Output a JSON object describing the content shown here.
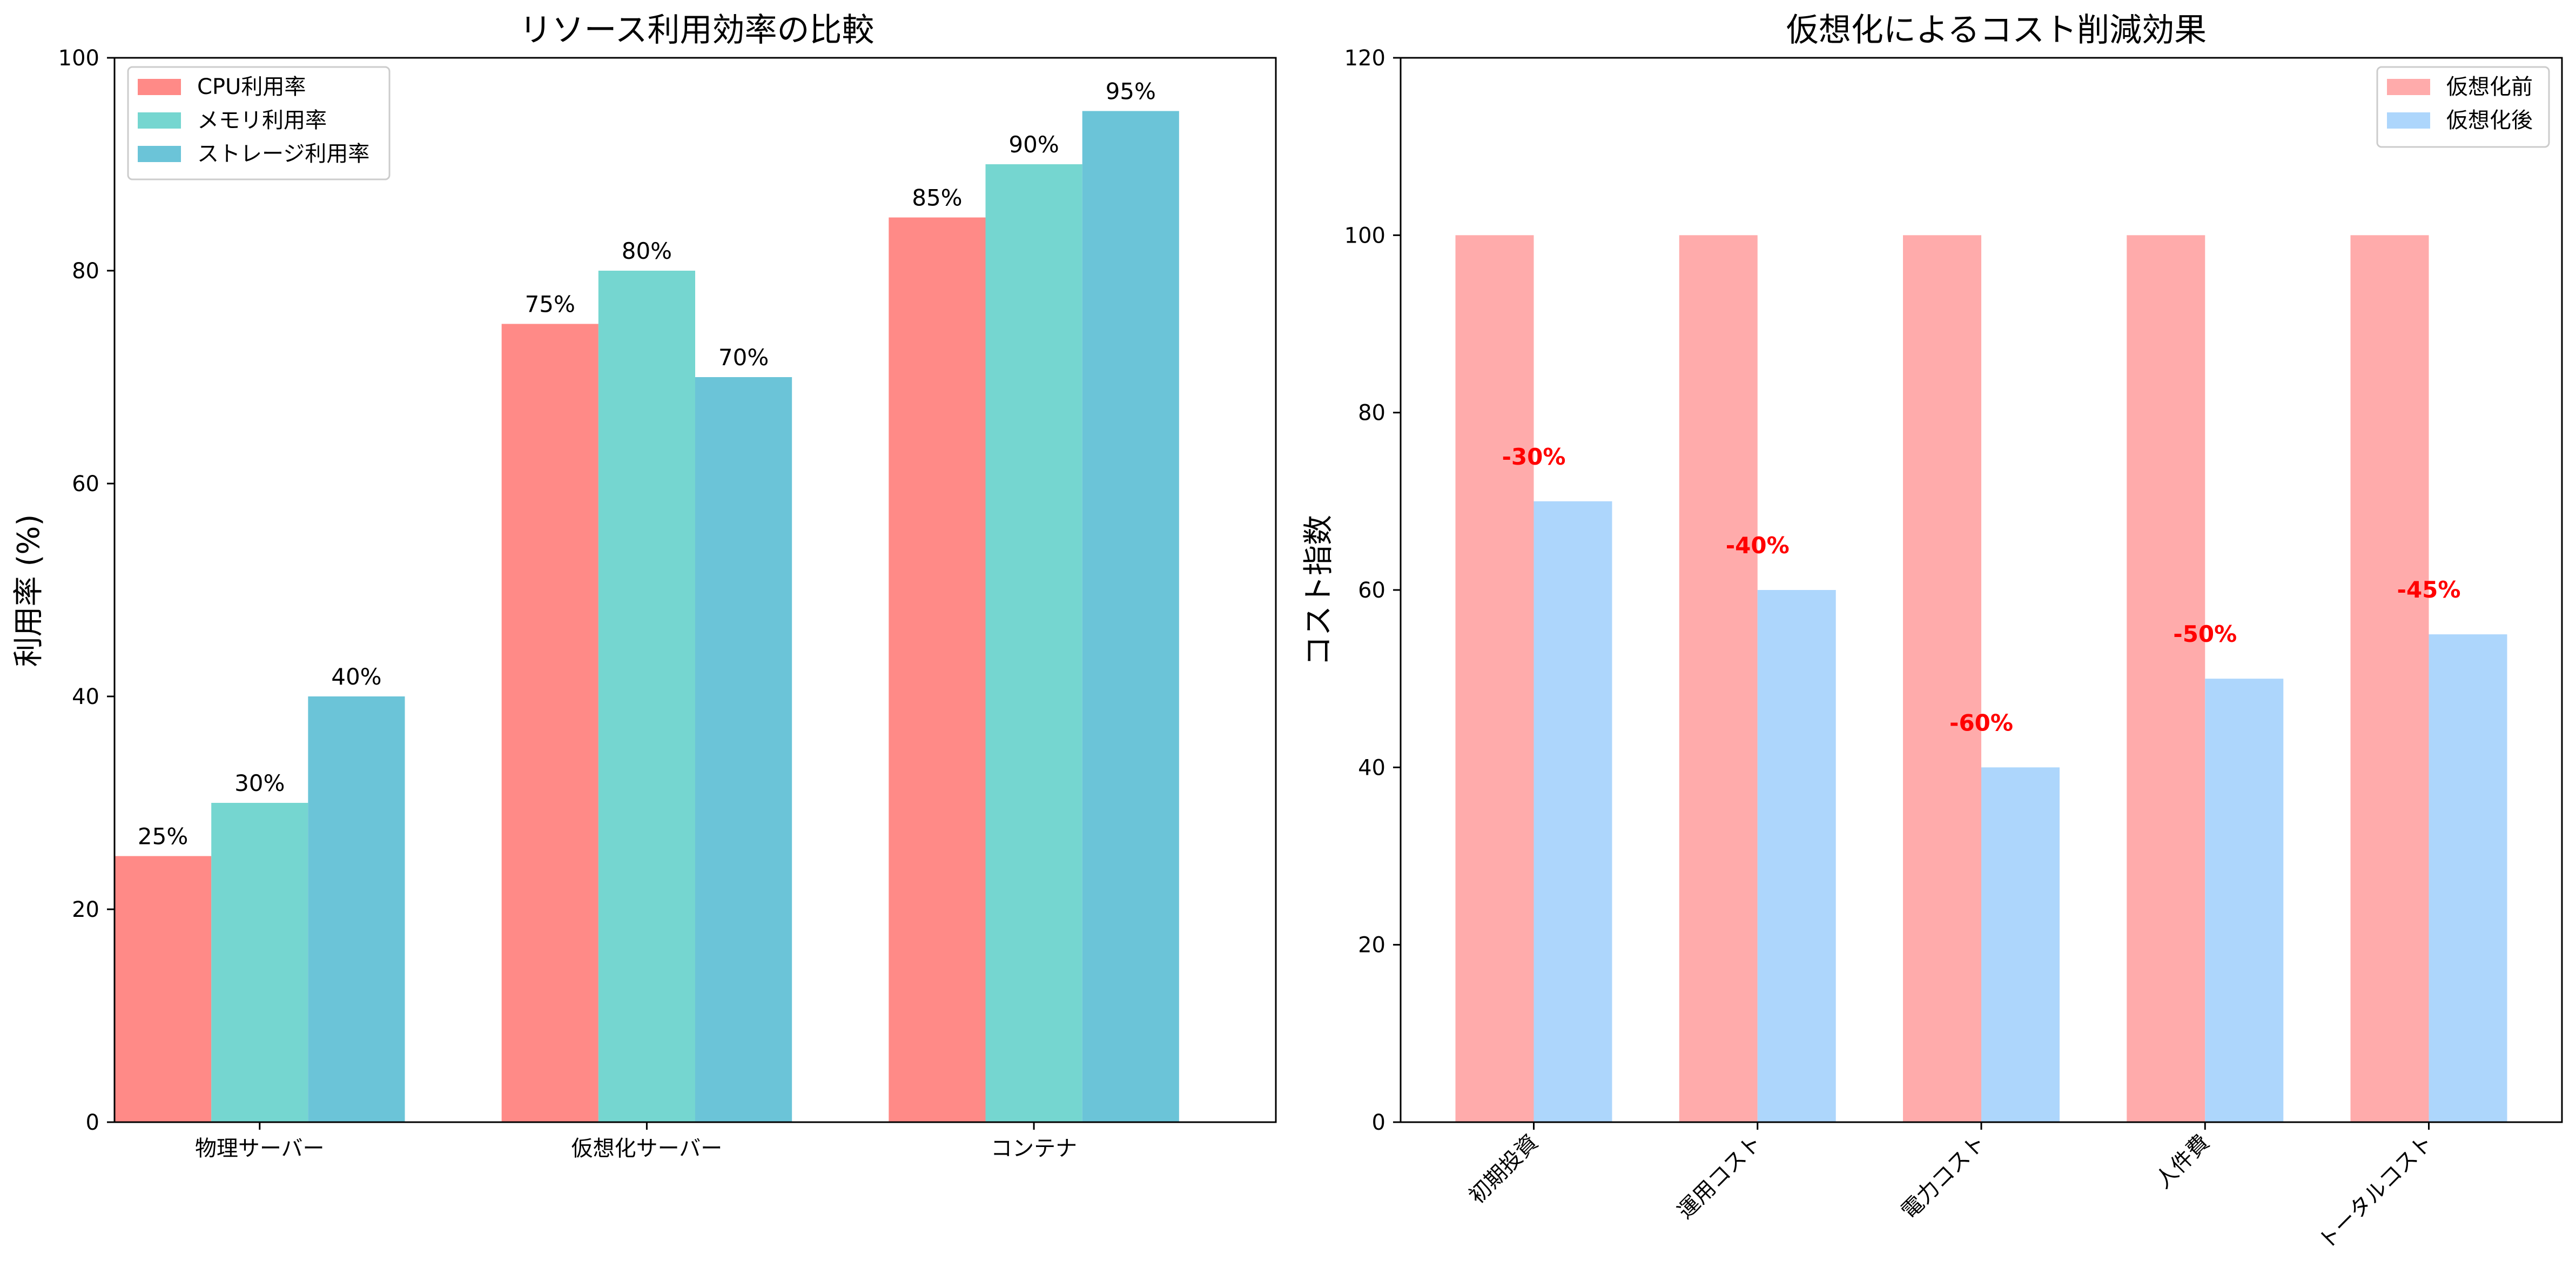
{
  "chart_data": [
    {
      "type": "bar",
      "title": "リソース利用効率の比較",
      "xlabel": "",
      "ylabel": "利用率 (%)",
      "ylim": [
        0,
        100
      ],
      "yticks": [
        0,
        20,
        40,
        60,
        80,
        100
      ],
      "grid": false,
      "legend_position": "top-left",
      "categories": [
        "物理サーバー",
        "仮想化サーバー",
        "コンテナ"
      ],
      "series": [
        {
          "name": "CPU利用率",
          "values": [
            25,
            75,
            85
          ],
          "color": "#ff8a87",
          "labels": [
            "25%",
            "75%",
            "85%"
          ]
        },
        {
          "name": "メモリ利用率",
          "values": [
            30,
            80,
            90
          ],
          "color": "#75d6d0",
          "labels": [
            "30%",
            "80%",
            "90%"
          ]
        },
        {
          "name": "ストレージ利用率",
          "values": [
            40,
            70,
            95
          ],
          "color": "#6bc4d8",
          "labels": [
            "40%",
            "70%",
            "95%"
          ]
        }
      ]
    },
    {
      "type": "bar",
      "title": "仮想化によるコスト削減効果",
      "xlabel": "",
      "ylabel": "コスト指数",
      "ylim": [
        0,
        120
      ],
      "yticks": [
        0,
        20,
        40,
        60,
        80,
        100,
        120
      ],
      "grid": false,
      "legend_position": "top-right",
      "categories": [
        "初期投資",
        "運用コスト",
        "電力コスト",
        "人件費",
        "トータルコスト"
      ],
      "series": [
        {
          "name": "仮想化前",
          "values": [
            100,
            100,
            100,
            100,
            100
          ],
          "color": "#ffabab"
        },
        {
          "name": "仮想化後",
          "values": [
            70,
            60,
            40,
            50,
            55
          ],
          "color": "#add6fc"
        }
      ],
      "annotations": [
        "-30%",
        "-40%",
        "-60%",
        "-50%",
        "-45%"
      ],
      "annotation_color": "#ff0000"
    }
  ]
}
